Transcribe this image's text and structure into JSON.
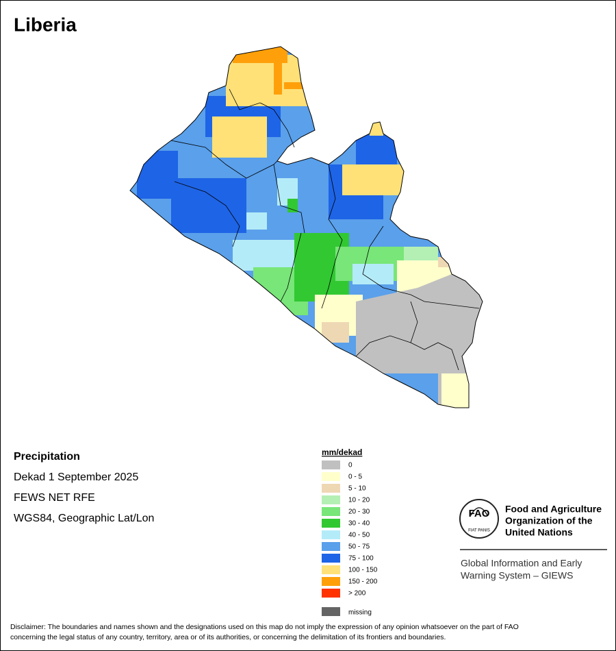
{
  "title": "Liberia",
  "info": [
    "Precipitation",
    "Dekad 1 September 2025",
    "FEWS NET RFE",
    "WGS84, Geographic Lat/Lon"
  ],
  "legend": {
    "title": "mm/dekad",
    "items": [
      {
        "label": "0",
        "color": "#c0c0c0"
      },
      {
        "label": "0 - 5",
        "color": "#ffffcc"
      },
      {
        "label": "5 - 10",
        "color": "#eed8b4"
      },
      {
        "label": "10 - 20",
        "color": "#b4f0b4"
      },
      {
        "label": "20 - 30",
        "color": "#78e678"
      },
      {
        "label": "30 - 40",
        "color": "#32c832"
      },
      {
        "label": "40 - 50",
        "color": "#b4ebf8"
      },
      {
        "label": "50 - 75",
        "color": "#5aa0eb"
      },
      {
        "label": "75 - 100",
        "color": "#1e64e6"
      },
      {
        "label": "100 - 150",
        "color": "#ffe178"
      },
      {
        "label": "150 - 200",
        "color": "#ffa00a"
      },
      {
        "label": ">  200",
        "color": "#ff3200"
      }
    ],
    "missing": {
      "label": "missing",
      "color": "#646464"
    }
  },
  "logo": {
    "emblem": "FAO",
    "motto": "FIAT PANIS",
    "org": [
      "Food and Agriculture",
      "Organization of the",
      "United Nations"
    ],
    "system": [
      "Global Information and Early",
      "Warning System – GIEWS"
    ]
  },
  "disclaimer": [
    "Disclaimer: The boundaries and names shown and the designations used on this map do not imply the expression of any opinion whatsoever on the part of FAO",
    "concerning the legal status of any country, territory, area or of its authorities, or concerning the delimitation of its frontiers and boundaries."
  ]
}
